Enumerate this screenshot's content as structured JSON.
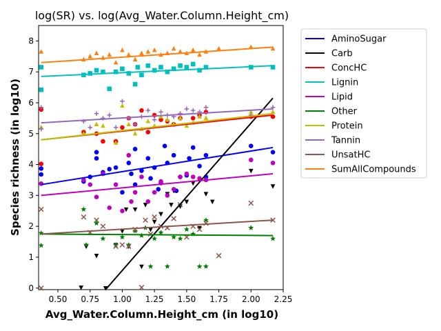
{
  "chart_data": {
    "type": "scatter",
    "title": "log(SR) vs. log(Avg_Water.Column.Height_cm)",
    "xlabel": "Avg_Water.Column.Height_cm (in log10)",
    "ylabel": "Species richness (in log10)",
    "xlim": [
      0.35,
      2.25
    ],
    "ylim": [
      -0.05,
      8.5
    ],
    "xticks": [
      "0.50",
      "0.75",
      "1.00",
      "1.25",
      "1.50",
      "1.75",
      "2.00",
      "2.25"
    ],
    "xtick_values": [
      0.5,
      0.75,
      1.0,
      1.25,
      1.5,
      1.75,
      2.0,
      2.25
    ],
    "yticks": [
      "0",
      "1",
      "2",
      "3",
      "4",
      "5",
      "6",
      "7",
      "8"
    ],
    "ytick_values": [
      0,
      1,
      2,
      3,
      4,
      5,
      6,
      7,
      8
    ],
    "legend_position": "outside-right",
    "series": [
      {
        "name": "AminoSugar",
        "color": "#0000ff",
        "marker": "circle",
        "trend": [
          [
            0.37,
            3.35
          ],
          [
            2.17,
            4.55
          ]
        ],
        "points": [
          [
            0.37,
            3.87
          ],
          [
            0.37,
            3.68
          ],
          [
            0.7,
            3.45
          ],
          [
            0.75,
            3.6
          ],
          [
            0.8,
            4.4
          ],
          [
            0.8,
            4.2
          ],
          [
            0.85,
            3.75
          ],
          [
            0.9,
            3.85
          ],
          [
            0.95,
            3.9
          ],
          [
            1.0,
            3.1
          ],
          [
            1.05,
            4.05
          ],
          [
            1.07,
            3.7
          ],
          [
            1.1,
            4.5
          ],
          [
            1.1,
            3.35
          ],
          [
            1.15,
            3.8
          ],
          [
            1.2,
            4.2
          ],
          [
            1.22,
            3.55
          ],
          [
            1.25,
            3.9
          ],
          [
            1.28,
            3.2
          ],
          [
            1.3,
            3.4
          ],
          [
            1.33,
            4.6
          ],
          [
            1.35,
            4.05
          ],
          [
            1.4,
            4.3
          ],
          [
            1.42,
            3.15
          ],
          [
            1.45,
            3.6
          ],
          [
            1.5,
            3.65
          ],
          [
            1.52,
            4.2
          ],
          [
            1.55,
            4.55
          ],
          [
            1.6,
            3.95
          ],
          [
            1.65,
            3.6
          ],
          [
            1.65,
            4.3
          ],
          [
            2.0,
            4.6
          ],
          [
            2.17,
            4.4
          ]
        ]
      },
      {
        "name": "Carb",
        "color": "#000000",
        "marker": "triangle-down",
        "trend": [
          [
            0.87,
            -0.05
          ],
          [
            2.17,
            6.15
          ]
        ],
        "points": [
          [
            0.68,
            0.02
          ],
          [
            0.72,
            1.35
          ],
          [
            0.8,
            1.05
          ],
          [
            0.87,
            0.0
          ],
          [
            0.95,
            1.4
          ],
          [
            1.0,
            1.85
          ],
          [
            1.03,
            2.55
          ],
          [
            1.05,
            1.35
          ],
          [
            1.1,
            2.55
          ],
          [
            1.15,
            0.7
          ],
          [
            1.18,
            2.7
          ],
          [
            1.22,
            1.9
          ],
          [
            1.25,
            2.15
          ],
          [
            1.3,
            2.4
          ],
          [
            1.35,
            3.05
          ],
          [
            1.38,
            2.7
          ],
          [
            1.4,
            3.15
          ],
          [
            1.45,
            2.65
          ],
          [
            1.5,
            2.8
          ],
          [
            1.55,
            3.4
          ],
          [
            1.6,
            1.95
          ],
          [
            1.65,
            3.05
          ],
          [
            1.7,
            2.8
          ],
          [
            2.0,
            3.8
          ],
          [
            2.17,
            3.3
          ]
        ]
      },
      {
        "name": "ConcHC",
        "color": "#ff0000",
        "marker": "circle",
        "trend": [
          [
            0.37,
            4.8
          ],
          [
            2.17,
            5.6
          ]
        ],
        "points": [
          [
            0.37,
            5.78
          ],
          [
            0.37,
            4.02
          ],
          [
            0.7,
            5.05
          ],
          [
            0.8,
            5.0
          ],
          [
            0.85,
            4.75
          ],
          [
            0.95,
            4.75
          ],
          [
            1.0,
            5.2
          ],
          [
            1.05,
            5.5
          ],
          [
            1.1,
            5.3
          ],
          [
            1.15,
            5.75
          ],
          [
            1.2,
            5.05
          ],
          [
            1.25,
            5.6
          ],
          [
            1.3,
            5.45
          ],
          [
            1.35,
            5.4
          ],
          [
            1.4,
            5.3
          ],
          [
            1.45,
            5.5
          ],
          [
            1.55,
            5.5
          ],
          [
            1.6,
            5.6
          ],
          [
            1.65,
            5.7
          ],
          [
            2.0,
            5.55
          ],
          [
            2.17,
            5.55
          ]
        ]
      },
      {
        "name": "Lignin",
        "color": "#00bfbf",
        "marker": "square",
        "trend": [
          [
            0.37,
            6.85
          ],
          [
            2.17,
            7.2
          ]
        ],
        "points": [
          [
            0.37,
            7.15
          ],
          [
            0.37,
            6.42
          ],
          [
            0.7,
            6.9
          ],
          [
            0.75,
            6.95
          ],
          [
            0.8,
            7.05
          ],
          [
            0.85,
            7.0
          ],
          [
            0.9,
            6.45
          ],
          [
            0.95,
            7.0
          ],
          [
            1.0,
            7.1
          ],
          [
            1.05,
            6.95
          ],
          [
            1.1,
            6.6
          ],
          [
            1.12,
            7.15
          ],
          [
            1.15,
            6.9
          ],
          [
            1.2,
            7.2
          ],
          [
            1.25,
            7.05
          ],
          [
            1.3,
            7.15
          ],
          [
            1.35,
            7.0
          ],
          [
            1.4,
            7.1
          ],
          [
            1.45,
            7.2
          ],
          [
            1.5,
            7.15
          ],
          [
            1.55,
            7.25
          ],
          [
            1.6,
            7.05
          ],
          [
            1.65,
            7.15
          ],
          [
            2.0,
            7.15
          ],
          [
            2.17,
            7.15
          ]
        ]
      },
      {
        "name": "Lipid",
        "color": "#bf00bf",
        "marker": "circle",
        "trend": [
          [
            0.37,
            3.0
          ],
          [
            2.17,
            3.7
          ]
        ],
        "points": [
          [
            0.37,
            3.38
          ],
          [
            0.7,
            3.5
          ],
          [
            0.75,
            3.35
          ],
          [
            0.8,
            2.95
          ],
          [
            0.85,
            3.7
          ],
          [
            0.9,
            2.6
          ],
          [
            0.95,
            3.35
          ],
          [
            1.0,
            2.5
          ],
          [
            1.05,
            4.3
          ],
          [
            1.07,
            2.8
          ],
          [
            1.1,
            3.1
          ],
          [
            1.15,
            3.6
          ],
          [
            1.2,
            2.8
          ],
          [
            1.25,
            3.1
          ],
          [
            1.3,
            3.45
          ],
          [
            1.35,
            3.0
          ],
          [
            1.4,
            3.2
          ],
          [
            1.45,
            3.6
          ],
          [
            1.5,
            3.7
          ],
          [
            1.55,
            3.6
          ],
          [
            1.6,
            3.55
          ],
          [
            1.65,
            3.5
          ],
          [
            2.0,
            4.15
          ],
          [
            2.17,
            4.05
          ]
        ]
      },
      {
        "name": "Other",
        "color": "#008000",
        "marker": "star",
        "trend": [
          [
            0.37,
            1.75
          ],
          [
            2.17,
            1.7
          ]
        ],
        "points": [
          [
            0.37,
            1.38
          ],
          [
            0.37,
            1.78
          ],
          [
            0.7,
            2.55
          ],
          [
            0.72,
            1.4
          ],
          [
            0.8,
            2.1
          ],
          [
            0.85,
            1.6
          ],
          [
            0.95,
            1.4
          ],
          [
            1.0,
            1.65
          ],
          [
            1.05,
            1.4
          ],
          [
            1.1,
            1.85
          ],
          [
            1.15,
            1.7
          ],
          [
            1.18,
            1.95
          ],
          [
            1.22,
            0.7
          ],
          [
            1.25,
            1.6
          ],
          [
            1.3,
            1.8
          ],
          [
            1.35,
            0.7
          ],
          [
            1.4,
            1.65
          ],
          [
            1.45,
            1.6
          ],
          [
            1.5,
            1.9
          ],
          [
            1.55,
            1.75
          ],
          [
            1.6,
            0.7
          ],
          [
            1.65,
            0.7
          ],
          [
            1.65,
            2.2
          ],
          [
            2.0,
            1.95
          ],
          [
            2.17,
            1.6
          ]
        ]
      },
      {
        "name": "Protein",
        "color": "#bfbf00",
        "marker": "triangle-up",
        "trend": [
          [
            0.37,
            4.8
          ],
          [
            2.17,
            5.65
          ]
        ],
        "points": [
          [
            0.37,
            5.2
          ],
          [
            0.7,
            5.0
          ],
          [
            0.8,
            5.3
          ],
          [
            0.85,
            5.25
          ],
          [
            0.95,
            4.7
          ],
          [
            1.0,
            5.9
          ],
          [
            1.05,
            5.3
          ],
          [
            1.1,
            5.0
          ],
          [
            1.15,
            5.15
          ],
          [
            1.2,
            5.4
          ],
          [
            1.25,
            5.25
          ],
          [
            1.3,
            5.55
          ],
          [
            1.35,
            5.45
          ],
          [
            1.4,
            5.3
          ],
          [
            1.45,
            5.5
          ],
          [
            1.5,
            5.25
          ],
          [
            1.55,
            5.35
          ],
          [
            1.6,
            5.55
          ],
          [
            1.65,
            5.5
          ],
          [
            2.0,
            5.7
          ],
          [
            2.17,
            5.7
          ]
        ]
      },
      {
        "name": "Tannin",
        "color": "#9467bd",
        "marker": "plus",
        "trend": [
          [
            0.37,
            5.35
          ],
          [
            2.17,
            5.8
          ]
        ],
        "points": [
          [
            0.37,
            5.15
          ],
          [
            0.37,
            5.85
          ],
          [
            0.7,
            5.4
          ],
          [
            0.75,
            5.2
          ],
          [
            0.8,
            5.65
          ],
          [
            0.85,
            5.5
          ],
          [
            0.9,
            5.6
          ],
          [
            0.95,
            5.2
          ],
          [
            1.0,
            6.05
          ],
          [
            1.05,
            5.5
          ],
          [
            1.1,
            5.3
          ],
          [
            1.15,
            5.55
          ],
          [
            1.2,
            5.75
          ],
          [
            1.25,
            5.45
          ],
          [
            1.3,
            5.7
          ],
          [
            1.35,
            5.6
          ],
          [
            1.4,
            5.55
          ],
          [
            1.45,
            5.65
          ],
          [
            1.5,
            5.8
          ],
          [
            1.55,
            5.75
          ],
          [
            1.6,
            5.7
          ],
          [
            1.65,
            5.85
          ],
          [
            2.0,
            5.6
          ],
          [
            2.17,
            5.85
          ]
        ]
      },
      {
        "name": "UnsatHC",
        "color": "#8c564b",
        "marker": "x",
        "trend": [
          [
            0.37,
            1.75
          ],
          [
            2.17,
            2.2
          ]
        ],
        "points": [
          [
            0.37,
            0.0
          ],
          [
            0.37,
            2.55
          ],
          [
            0.7,
            2.3
          ],
          [
            0.75,
            1.8
          ],
          [
            0.8,
            2.2
          ],
          [
            0.85,
            2.0
          ],
          [
            0.95,
            1.35
          ],
          [
            1.0,
            1.4
          ],
          [
            1.05,
            1.35
          ],
          [
            1.1,
            1.9
          ],
          [
            1.15,
            0.02
          ],
          [
            1.18,
            2.2
          ],
          [
            1.22,
            1.75
          ],
          [
            1.25,
            2.3
          ],
          [
            1.3,
            2.0
          ],
          [
            1.35,
            1.95
          ],
          [
            1.4,
            2.25
          ],
          [
            1.45,
            2.7
          ],
          [
            1.5,
            1.65
          ],
          [
            1.55,
            2.0
          ],
          [
            1.6,
            1.9
          ],
          [
            1.65,
            2.1
          ],
          [
            1.75,
            1.05
          ],
          [
            2.0,
            2.75
          ],
          [
            2.17,
            2.2
          ]
        ]
      },
      {
        "name": "SumAllCompounds",
        "color": "#ff7f0e",
        "marker": "triangle-up",
        "trend": [
          [
            0.37,
            7.3
          ],
          [
            2.17,
            7.8
          ]
        ],
        "points": [
          [
            0.37,
            7.65
          ],
          [
            0.7,
            7.4
          ],
          [
            0.75,
            7.5
          ],
          [
            0.8,
            7.6
          ],
          [
            0.85,
            7.45
          ],
          [
            0.9,
            7.55
          ],
          [
            0.95,
            7.3
          ],
          [
            1.0,
            7.7
          ],
          [
            1.05,
            7.55
          ],
          [
            1.1,
            7.4
          ],
          [
            1.15,
            7.6
          ],
          [
            1.2,
            7.65
          ],
          [
            1.25,
            7.7
          ],
          [
            1.3,
            7.55
          ],
          [
            1.35,
            7.6
          ],
          [
            1.4,
            7.75
          ],
          [
            1.45,
            7.65
          ],
          [
            1.5,
            7.6
          ],
          [
            1.55,
            7.7
          ],
          [
            1.6,
            7.55
          ],
          [
            1.65,
            7.65
          ],
          [
            1.75,
            7.75
          ],
          [
            2.0,
            7.8
          ],
          [
            2.17,
            7.75
          ]
        ]
      }
    ]
  }
}
